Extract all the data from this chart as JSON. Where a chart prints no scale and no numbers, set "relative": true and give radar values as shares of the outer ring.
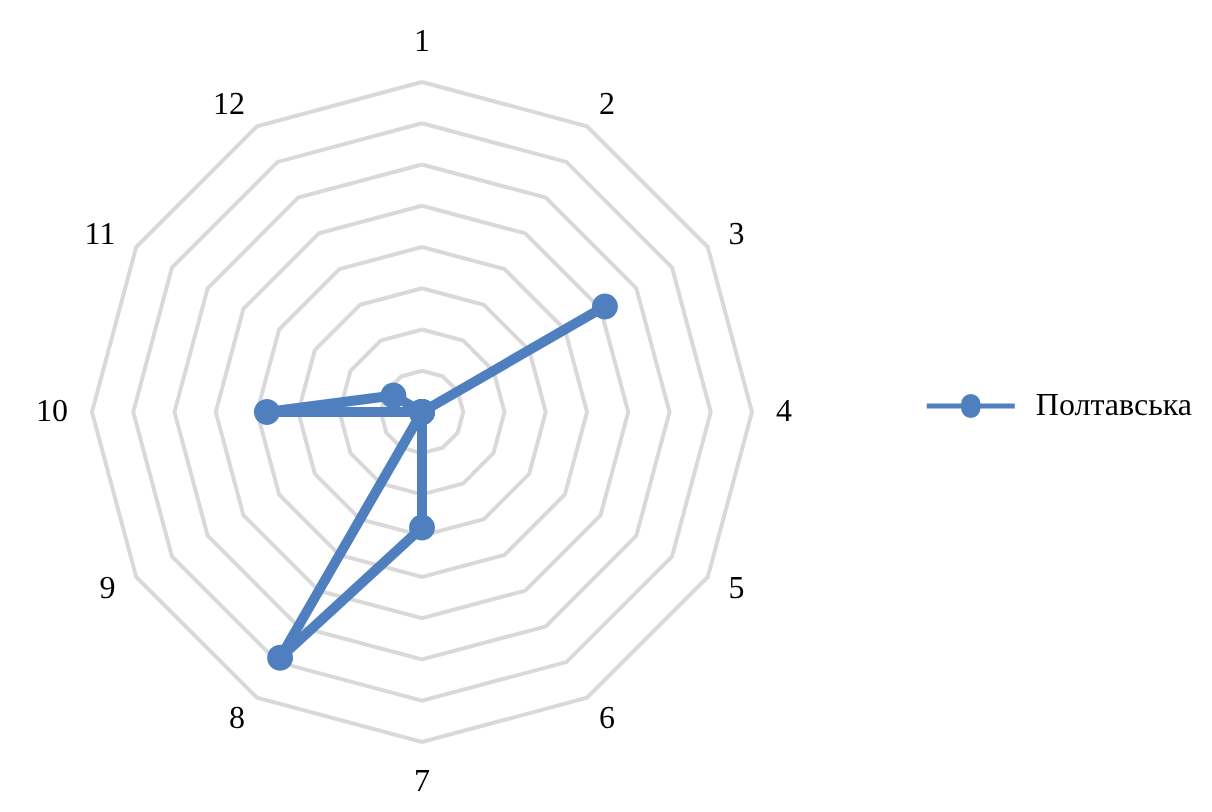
{
  "chart_data": {
    "type": "radar",
    "relative": true,
    "categories": [
      "1",
      "2",
      "3",
      "4",
      "5",
      "6",
      "7",
      "8",
      "9",
      "10",
      "11",
      "12"
    ],
    "series": [
      {
        "name": "Полтавська",
        "color": "#4f7fbf",
        "values": [
          0,
          0,
          0.64,
          0,
          0,
          0,
          0.35,
          0.86,
          0,
          0.47,
          0.1,
          0
        ]
      }
    ],
    "legend": "right",
    "marker": "circle",
    "line_style": "solid",
    "grid": true
  }
}
